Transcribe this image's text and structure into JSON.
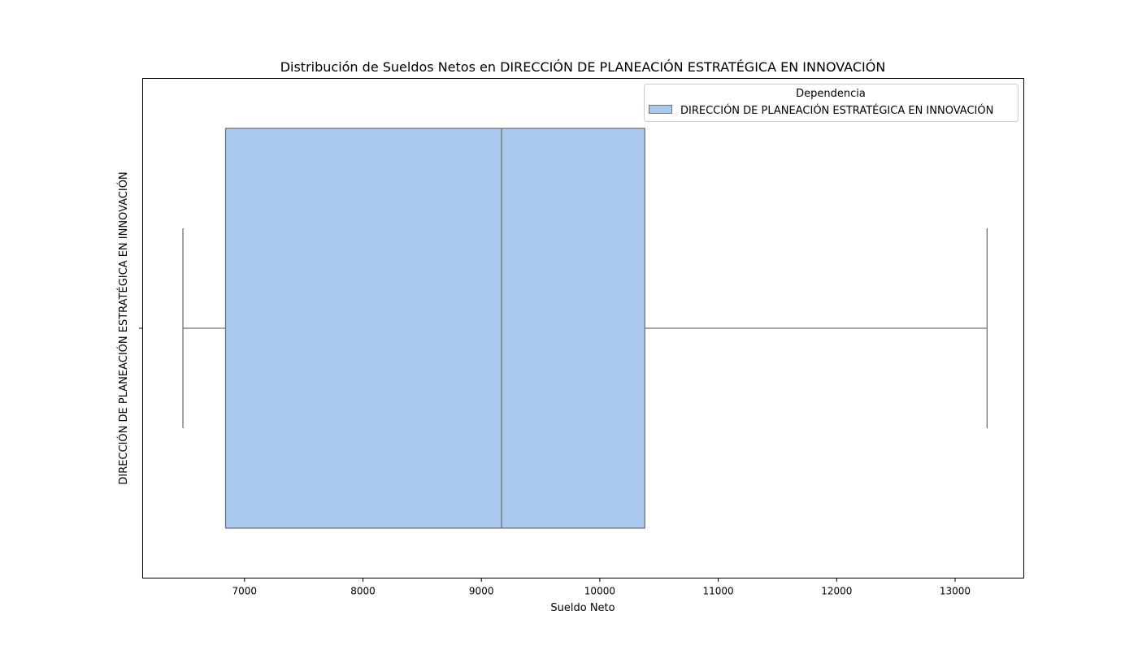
{
  "chart_data": {
    "type": "box",
    "title": "Distribución de Sueldos Netos en DIRECCIÓN DE PLANEACIÓN ESTRATÉGICA EN INNOVACIÓN",
    "xlabel": "Sueldo Neto",
    "ylabel": "DIRECCIÓN DE PLANEACIÓN ESTRATÉGICA EN INNOVACIÓN",
    "xlim": [
      6140,
      13580
    ],
    "xticks": [
      7000,
      8000,
      9000,
      10000,
      11000,
      12000,
      13000
    ],
    "orientation": "horizontal",
    "grid": false,
    "legend": {
      "title": "Dependencia",
      "position": "top-right",
      "entries": [
        "DIRECCIÓN DE PLANEACIÓN ESTRATÉGICA EN INNOVACIÓN"
      ]
    },
    "series": [
      {
        "name": "DIRECCIÓN DE PLANEACIÓN ESTRATÉGICA EN INNOVACIÓN",
        "whisker_low": 6480,
        "q1": 6840,
        "median": 9170,
        "q3": 10380,
        "whisker_high": 13270
      }
    ],
    "colors": {
      "box_fill": "#abc9ee",
      "box_edge": "#727272"
    }
  }
}
